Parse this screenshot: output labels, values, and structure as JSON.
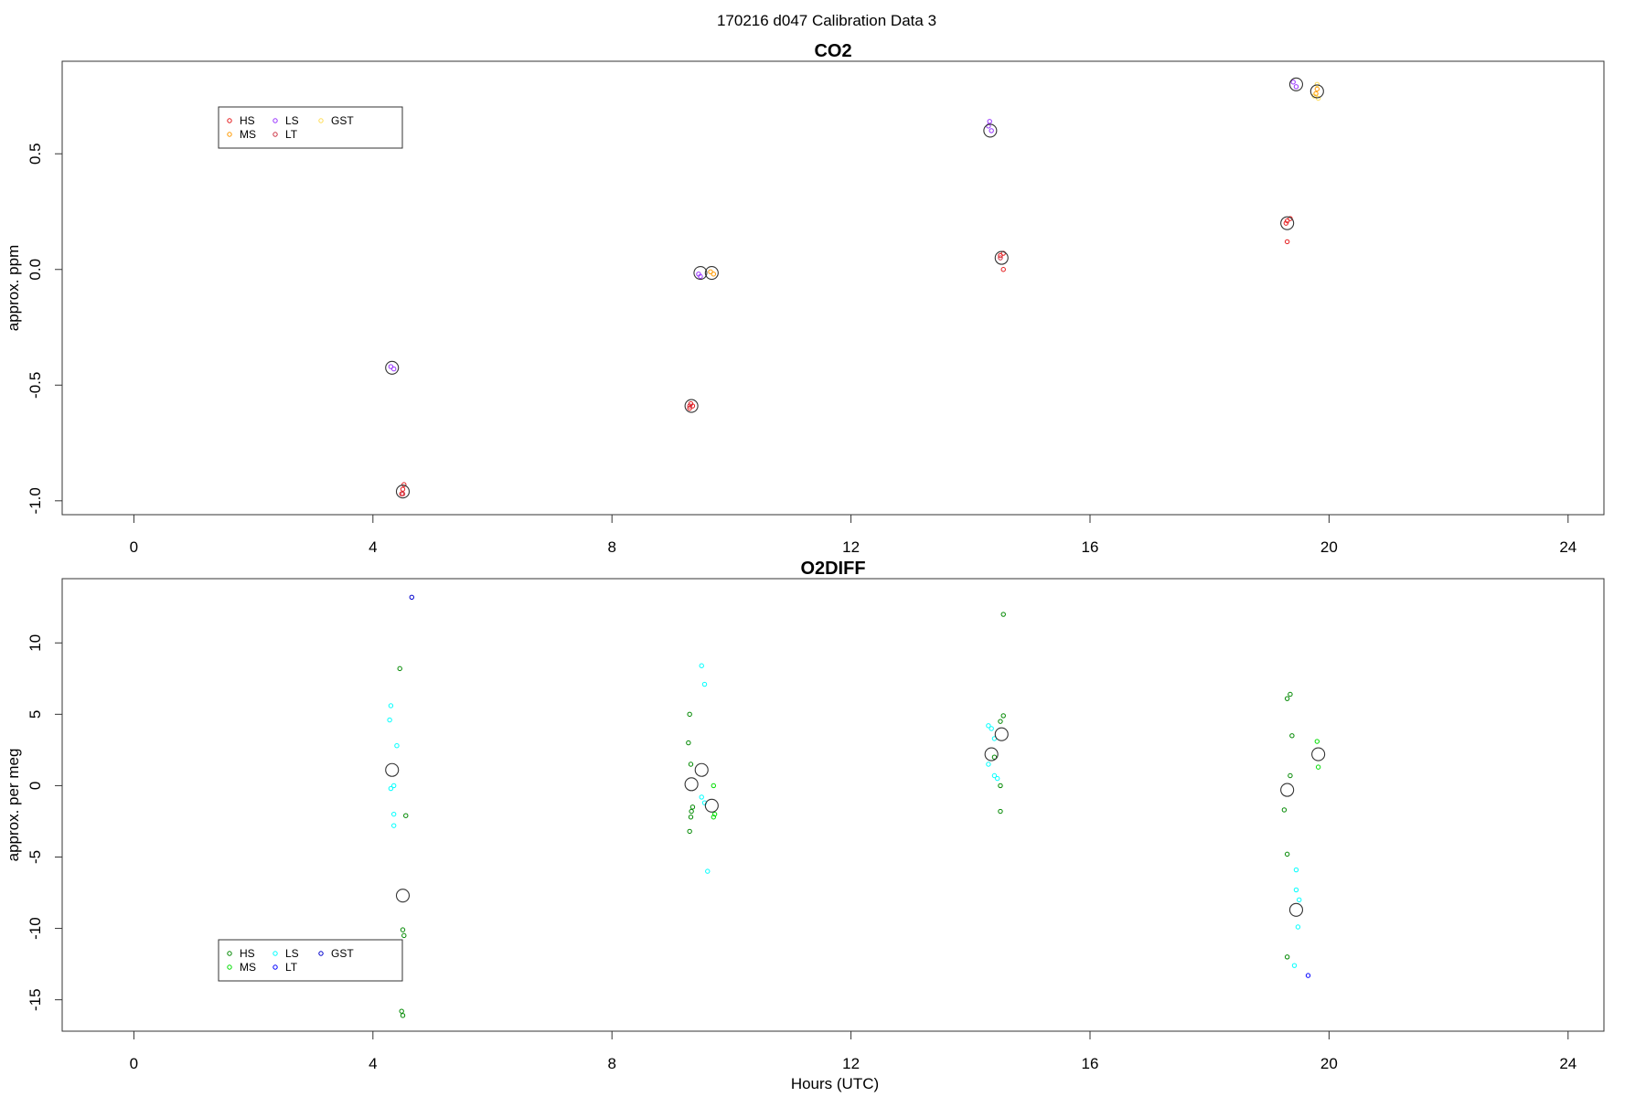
{
  "page_title": "170216   d047   Calibration Data 3",
  "colors": {
    "HS": "#e41a1c",
    "MS": "#ff9900",
    "LS": "#9933ff",
    "LT": "#cc3344",
    "GST": "#ffdd55",
    "HS_o2": "#008800",
    "MS_o2": "#00dd00",
    "LS_o2": "#00ffff",
    "LT_o2": "#0000ff",
    "GST_o2": "#0000cc",
    "mean_marker": "#333333"
  },
  "chart_data": [
    {
      "type": "scatter",
      "title": "CO2",
      "xlabel": "",
      "ylabel": "approx. ppm",
      "xlim": [
        -1.2,
        24.6
      ],
      "ylim": [
        -1.06,
        0.9
      ],
      "xticks": [
        "0",
        "4",
        "8",
        "12",
        "16",
        "20",
        "24"
      ],
      "yticks": [
        "-1.0",
        "-0.5",
        "0.0",
        "0.5"
      ],
      "legend": {
        "position": "top-left",
        "entries": [
          "HS",
          "MS",
          "LS",
          "LT",
          "GST"
        ]
      },
      "series": [
        {
          "name": "HS",
          "points": [
            [
              4.5,
              -0.95
            ],
            [
              4.52,
              -0.93
            ],
            [
              4.48,
              -0.97
            ],
            [
              9.32,
              -0.58
            ],
            [
              9.35,
              -0.59
            ],
            [
              9.3,
              -0.6
            ],
            [
              14.5,
              0.06
            ],
            [
              14.55,
              0.07
            ],
            [
              14.55,
              0.0
            ],
            [
              19.3,
              0.21
            ],
            [
              19.35,
              0.22
            ],
            [
              19.3,
              0.12
            ],
            [
              19.28,
              0.2
            ]
          ]
        },
        {
          "name": "MS",
          "points": [
            [
              9.65,
              -0.01
            ],
            [
              9.7,
              -0.02
            ],
            [
              19.8,
              0.78
            ],
            [
              19.78,
              0.76
            ]
          ]
        },
        {
          "name": "LS",
          "points": [
            [
              4.3,
              -0.42
            ],
            [
              4.35,
              -0.43
            ],
            [
              9.45,
              -0.02
            ],
            [
              9.48,
              -0.03
            ],
            [
              14.3,
              0.62
            ],
            [
              14.35,
              0.6
            ],
            [
              14.32,
              0.64
            ],
            [
              19.4,
              0.81
            ],
            [
              19.45,
              0.79
            ]
          ]
        },
        {
          "name": "LT",
          "points": [
            [
              4.5,
              -0.97
            ],
            [
              9.3,
              -0.59
            ],
            [
              14.5,
              0.05
            ]
          ]
        },
        {
          "name": "GST",
          "points": [
            [
              19.8,
              0.8
            ],
            [
              19.75,
              0.75
            ],
            [
              19.82,
              0.74
            ]
          ]
        },
        {
          "name": "mean",
          "points": [
            [
              4.32,
              -0.425
            ],
            [
              4.5,
              -0.96
            ],
            [
              9.33,
              -0.59
            ],
            [
              9.48,
              -0.015
            ],
            [
              9.67,
              -0.015
            ],
            [
              14.33,
              0.6
            ],
            [
              14.52,
              0.05
            ],
            [
              19.3,
              0.2
            ],
            [
              19.45,
              0.8
            ],
            [
              19.8,
              0.77
            ]
          ]
        }
      ]
    },
    {
      "type": "scatter",
      "title": "O2DIFF",
      "xlabel": "Hours (UTC)",
      "ylabel": "approx. per meg",
      "xlim": [
        -1.2,
        24.6
      ],
      "ylim": [
        -17.2,
        14.5
      ],
      "xticks": [
        "0",
        "4",
        "8",
        "12",
        "16",
        "20",
        "24"
      ],
      "yticks": [
        "-15",
        "-10",
        "-5",
        "0",
        "5",
        "10"
      ],
      "legend": {
        "position": "bottom-left",
        "entries": [
          "HS",
          "MS",
          "LS",
          "LT",
          "GST"
        ]
      },
      "series": [
        {
          "name": "HS",
          "points": [
            [
              4.45,
              8.2
            ],
            [
              4.55,
              -2.1
            ],
            [
              4.5,
              -10.1
            ],
            [
              4.52,
              -10.5
            ],
            [
              4.48,
              -15.8
            ],
            [
              4.5,
              -16.1
            ],
            [
              9.3,
              5.0
            ],
            [
              9.28,
              3.0
            ],
            [
              9.32,
              1.5
            ],
            [
              9.35,
              -1.5
            ],
            [
              9.33,
              -1.8
            ],
            [
              9.32,
              -2.2
            ],
            [
              9.3,
              -3.2
            ],
            [
              14.4,
              2.0
            ],
            [
              14.5,
              4.5
            ],
            [
              14.55,
              4.9
            ],
            [
              14.55,
              12.0
            ],
            [
              14.5,
              0.0
            ],
            [
              14.5,
              -1.8
            ],
            [
              19.3,
              6.1
            ],
            [
              19.35,
              6.4
            ],
            [
              19.38,
              3.5
            ],
            [
              19.35,
              0.7
            ],
            [
              19.25,
              -1.7
            ],
            [
              19.3,
              -4.8
            ],
            [
              19.3,
              -12.0
            ]
          ]
        },
        {
          "name": "MS",
          "points": [
            [
              9.7,
              0.0
            ],
            [
              9.72,
              -2.0
            ],
            [
              9.7,
              -2.2
            ],
            [
              19.8,
              3.1
            ],
            [
              19.82,
              1.3
            ]
          ]
        },
        {
          "name": "LS",
          "points": [
            [
              4.3,
              5.6
            ],
            [
              4.28,
              4.6
            ],
            [
              4.4,
              2.8
            ],
            [
              4.35,
              0.0
            ],
            [
              4.3,
              -0.2
            ],
            [
              4.35,
              -2.0
            ],
            [
              4.35,
              -2.8
            ],
            [
              9.5,
              8.4
            ],
            [
              9.55,
              7.1
            ],
            [
              9.5,
              -0.8
            ],
            [
              9.55,
              -1.2
            ],
            [
              9.6,
              -6.0
            ],
            [
              14.3,
              4.2
            ],
            [
              14.35,
              4.0
            ],
            [
              14.4,
              3.3
            ],
            [
              14.3,
              1.5
            ],
            [
              14.4,
              0.7
            ],
            [
              14.45,
              0.5
            ],
            [
              19.45,
              -5.9
            ],
            [
              19.45,
              -7.3
            ],
            [
              19.5,
              -8.0
            ],
            [
              19.48,
              -9.9
            ],
            [
              19.42,
              -12.6
            ]
          ]
        },
        {
          "name": "LT",
          "points": [
            [
              19.65,
              -13.3
            ]
          ]
        },
        {
          "name": "GST",
          "points": [
            [
              4.65,
              13.2
            ]
          ]
        },
        {
          "name": "mean",
          "points": [
            [
              4.32,
              1.1
            ],
            [
              4.5,
              -7.7
            ],
            [
              9.33,
              0.1
            ],
            [
              9.5,
              1.1
            ],
            [
              9.67,
              -1.4
            ],
            [
              14.35,
              2.2
            ],
            [
              14.52,
              3.6
            ],
            [
              19.3,
              -0.3
            ],
            [
              19.45,
              -8.7
            ],
            [
              19.82,
              2.2
            ]
          ]
        }
      ]
    }
  ]
}
